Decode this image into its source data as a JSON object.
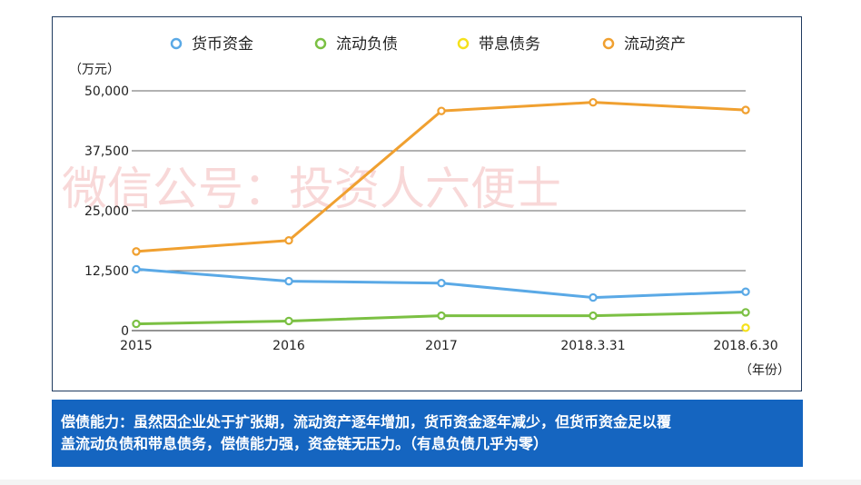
{
  "chart_data": {
    "type": "line",
    "unit_label": "（万元）",
    "x_unit_label": "（年份）",
    "categories": [
      "2015",
      "2016",
      "2017",
      "2018.3.31",
      "2018.6.30"
    ],
    "y_ticks": [
      "0",
      "12,500",
      "25,000",
      "37,500",
      "50,000"
    ],
    "ylim": [
      0,
      50000
    ],
    "grid": true,
    "legend_position": "top",
    "series": [
      {
        "name": "货币资金",
        "color": "#5aa9e6",
        "values": [
          12800,
          10300,
          9900,
          6900,
          8100
        ]
      },
      {
        "name": "流动负债",
        "color": "#7bc043",
        "values": [
          1400,
          2000,
          3100,
          3100,
          3800
        ]
      },
      {
        "name": "带息债务",
        "color": "#f5e11b",
        "values": [
          null,
          null,
          null,
          null,
          600
        ]
      },
      {
        "name": "流动资产",
        "color": "#f0a030",
        "values": [
          16500,
          18800,
          45800,
          47600,
          46000
        ]
      }
    ]
  },
  "watermark": "微信公号：投资人六便士",
  "conclusion": {
    "line1": "偿债能力：虽然因企业处于扩张期，流动资产逐年增加，货币资金逐年减少，但货币资金足以覆",
    "line2": "盖流动负债和带息债务，偿债能力强，资金链无压力。（有息负债几乎为零）"
  }
}
